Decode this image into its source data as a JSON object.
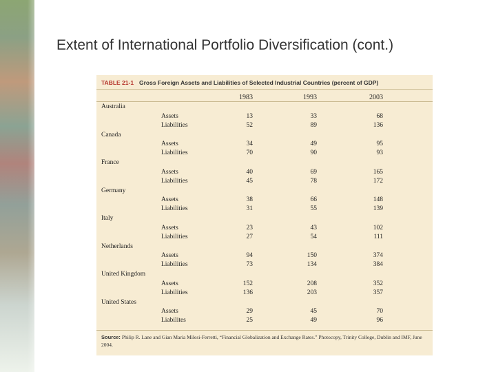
{
  "slide": {
    "title": "Extent of International Portfolio Diversification (cont.)"
  },
  "table": {
    "number": "TABLE 21-1",
    "caption": "Gross Foreign Assets and Liabilities of Selected Industrial Countries (percent of GDP)",
    "years": [
      "1983",
      "1993",
      "2003"
    ],
    "countries": [
      {
        "name": "Australia",
        "rows": [
          {
            "label": "Assets",
            "values": [
              "13",
              "33",
              "68"
            ]
          },
          {
            "label": "Liabilities",
            "values": [
              "52",
              "89",
              "136"
            ]
          }
        ]
      },
      {
        "name": "Canada",
        "rows": [
          {
            "label": "Assets",
            "values": [
              "34",
              "49",
              "95"
            ]
          },
          {
            "label": "Liabilities",
            "values": [
              "70",
              "90",
              "93"
            ]
          }
        ]
      },
      {
        "name": "France",
        "rows": [
          {
            "label": "Assets",
            "values": [
              "40",
              "69",
              "165"
            ]
          },
          {
            "label": "Liabilities",
            "values": [
              "45",
              "78",
              "172"
            ]
          }
        ]
      },
      {
        "name": "Germany",
        "rows": [
          {
            "label": "Assets",
            "values": [
              "38",
              "66",
              "148"
            ]
          },
          {
            "label": "Liabilities",
            "values": [
              "31",
              "55",
              "139"
            ]
          }
        ]
      },
      {
        "name": "Italy",
        "rows": [
          {
            "label": "Assets",
            "values": [
              "23",
              "43",
              "102"
            ]
          },
          {
            "label": "Liabilities",
            "values": [
              "27",
              "54",
              "111"
            ]
          }
        ]
      },
      {
        "name": "Netherlands",
        "rows": [
          {
            "label": "Assets",
            "values": [
              "94",
              "150",
              "374"
            ]
          },
          {
            "label": "Liabilities",
            "values": [
              "73",
              "134",
              "384"
            ]
          }
        ]
      },
      {
        "name": "United Kingdom",
        "rows": [
          {
            "label": "Assets",
            "values": [
              "152",
              "208",
              "352"
            ]
          },
          {
            "label": "Liabilities",
            "values": [
              "136",
              "203",
              "357"
            ]
          }
        ]
      },
      {
        "name": "United States",
        "rows": [
          {
            "label": "Assets",
            "values": [
              "29",
              "45",
              "70"
            ]
          },
          {
            "label": "Liabilites",
            "values": [
              "25",
              "49",
              "96"
            ]
          }
        ]
      }
    ],
    "source_label": "Source:",
    "source_text": "Philip R. Lane and Gian Maria Milesi-Ferretti, “Financial Globalization and Exchange Rates.” Photocopy, Trinity College, Dublin and IMF, June 2004."
  }
}
